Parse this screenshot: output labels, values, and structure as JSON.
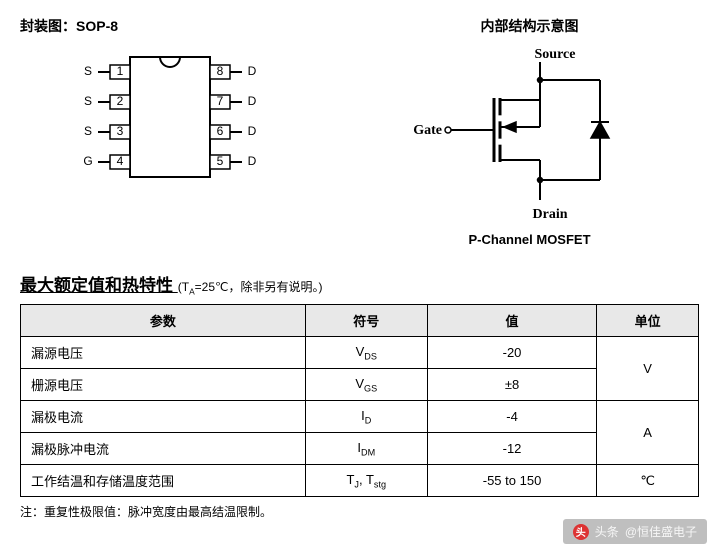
{
  "package": {
    "title": "封装图：SOP-8",
    "left_pins": [
      {
        "num": "1",
        "lbl": "S"
      },
      {
        "num": "2",
        "lbl": "S"
      },
      {
        "num": "3",
        "lbl": "S"
      },
      {
        "num": "4",
        "lbl": "G"
      }
    ],
    "right_pins": [
      {
        "num": "8",
        "lbl": "D"
      },
      {
        "num": "7",
        "lbl": "D"
      },
      {
        "num": "6",
        "lbl": "D"
      },
      {
        "num": "5",
        "lbl": "D"
      }
    ],
    "body_stroke": "#000000",
    "body_fill": "#ffffff",
    "body_width": 80,
    "body_height": 120,
    "pin_box_w": 20,
    "pin_box_h": 14,
    "lead_len": 12,
    "font_size": 12
  },
  "internal": {
    "title": "内部结构示意图",
    "source_label": "Source",
    "gate_label": "Gate",
    "drain_label": "Drain",
    "caption": "P-Channel MOSFET",
    "stroke": "#000000",
    "linewidth": 2,
    "font_family": "Times New Roman, serif",
    "font_size": 14
  },
  "ratings": {
    "heading": "最大额定值和热特性",
    "condition": "(T",
    "condition_sub": "A",
    "condition_rest": "=25℃，除非另有说明。)",
    "columns": [
      "参数",
      "符号",
      "值",
      "单位"
    ],
    "col_widths": [
      "42%",
      "18%",
      "25%",
      "15%"
    ],
    "rows": [
      {
        "param": "漏源电压",
        "sym": "V",
        "sym_sub": "DS",
        "val": "-20",
        "unit": "V",
        "unit_rowspan": 2
      },
      {
        "param": "栅源电压",
        "sym": "V",
        "sym_sub": "GS",
        "val": "±8"
      },
      {
        "param": "漏极电流",
        "sym": "I",
        "sym_sub": "D",
        "val": "-4",
        "unit": "A",
        "unit_rowspan": 2
      },
      {
        "param": "漏极脉冲电流",
        "sym": "I",
        "sym_sub": "DM",
        "val": "-12"
      },
      {
        "param": "工作结温和存储温度范围",
        "sym": "T",
        "sym_sub": "J",
        "sym2": ", T",
        "sym2_sub": "stg",
        "val": "-55 to 150",
        "unit": "℃",
        "unit_rowspan": 1
      }
    ],
    "footnote": "注：重复性极限值：脉冲宽度由最高结温限制。"
  },
  "watermark": {
    "prefix": "头条",
    "author": "@恒佳盛电子"
  }
}
